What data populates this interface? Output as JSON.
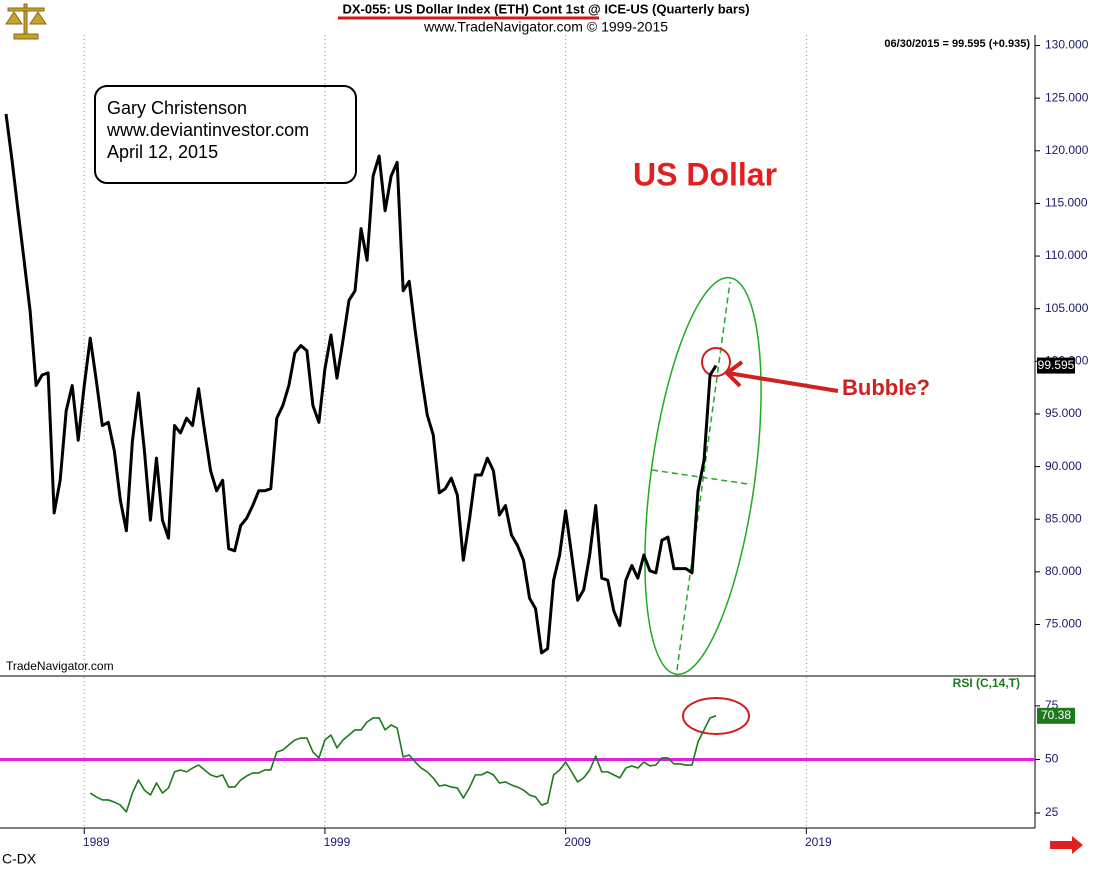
{
  "footer": "C-DX",
  "chart_data": [
    {
      "type": "line",
      "title": "DX-055:  US Dollar Index (ETH) Cont 1st @ ICE-US  (Quarterly bars)",
      "subtitle": "www.TradeNavigator.com © 1999-2015",
      "quote": "06/30/2015 = 99.595 (+0.935)",
      "watermark": "TradeNavigator.com",
      "note_lines": [
        "Gary Christenson",
        "www.deviantinvestor.com",
        "April 12, 2015"
      ],
      "headline": "US Dollar",
      "callout": "Bubble?",
      "color": "#000000",
      "grid": "x",
      "xlim": [
        1985.5,
        2028.5
      ],
      "ylim": [
        70.2,
        131
      ],
      "yticks": [
        {
          "value": 75,
          "label": "75.000"
        },
        {
          "value": 80,
          "label": "80.000"
        },
        {
          "value": 85,
          "label": "85.000"
        },
        {
          "value": 90,
          "label": "90.000"
        },
        {
          "value": 95,
          "label": "95.000"
        },
        {
          "value": 100,
          "label": "100.000"
        },
        {
          "value": 105,
          "label": "105.000"
        },
        {
          "value": 110,
          "label": "110.000"
        },
        {
          "value": 115,
          "label": "115.000"
        },
        {
          "value": 120,
          "label": "120.000"
        },
        {
          "value": 125,
          "label": "125.000"
        },
        {
          "value": 130,
          "label": "130.000"
        }
      ],
      "x": [
        1985.75,
        1986,
        1986.25,
        1986.5,
        1986.75,
        1987,
        1987.25,
        1987.5,
        1987.75,
        1988,
        1988.25,
        1988.5,
        1988.75,
        1989,
        1989.25,
        1989.5,
        1989.75,
        1990,
        1990.25,
        1990.5,
        1990.75,
        1991,
        1991.25,
        1991.5,
        1991.75,
        1992,
        1992.25,
        1992.5,
        1992.75,
        1993,
        1993.25,
        1993.5,
        1993.75,
        1994,
        1994.25,
        1994.5,
        1994.75,
        1995,
        1995.25,
        1995.5,
        1995.75,
        1996,
        1996.25,
        1996.5,
        1996.75,
        1997,
        1997.25,
        1997.5,
        1997.75,
        1998,
        1998.25,
        1998.5,
        1998.75,
        1999,
        1999.25,
        1999.5,
        1999.75,
        2000,
        2000.25,
        2000.5,
        2000.75,
        2001,
        2001.25,
        2001.5,
        2001.75,
        2002,
        2002.25,
        2002.5,
        2002.75,
        2003,
        2003.25,
        2003.5,
        2003.75,
        2004,
        2004.25,
        2004.5,
        2004.75,
        2005,
        2005.25,
        2005.5,
        2005.75,
        2006,
        2006.25,
        2006.5,
        2006.75,
        2007,
        2007.25,
        2007.5,
        2007.75,
        2008,
        2008.25,
        2008.5,
        2008.75,
        2009,
        2009.25,
        2009.5,
        2009.75,
        2010,
        2010.25,
        2010.5,
        2010.75,
        2011,
        2011.25,
        2011.5,
        2011.75,
        2012,
        2012.25,
        2012.5,
        2012.75,
        2013,
        2013.25,
        2013.5,
        2013.75,
        2014,
        2014.25,
        2014.5,
        2014.75,
        2015,
        2015.25
      ],
      "values": [
        123.5,
        119.1,
        114.3,
        109.6,
        104.8,
        97.7,
        98.7,
        98.9,
        85.6,
        88.7,
        95.3,
        97.7,
        92.5,
        97.7,
        102.2,
        98.2,
        93.9,
        94.2,
        91.5,
        86.8,
        83.9,
        92.4,
        97.0,
        91.5,
        84.9,
        90.8,
        84.9,
        83.2,
        93.9,
        93.2,
        94.6,
        93.9,
        97.4,
        93.4,
        89.6,
        87.7,
        88.7,
        82.2,
        82.0,
        84.4,
        85.1,
        86.3,
        87.7,
        87.7,
        87.9,
        94.6,
        95.8,
        97.7,
        100.8,
        101.5,
        101.0,
        95.8,
        94.2,
        99.3,
        102.5,
        98.4,
        102.0,
        105.8,
        106.7,
        112.6,
        109.6,
        117.6,
        119.5,
        114.3,
        117.6,
        118.9,
        106.7,
        107.6,
        102.9,
        98.7,
        94.9,
        93.0,
        87.5,
        87.9,
        88.9,
        87.3,
        81.1,
        84.9,
        89.2,
        89.2,
        90.8,
        89.6,
        85.4,
        86.3,
        83.5,
        82.5,
        81.1,
        77.5,
        76.5,
        72.3,
        72.7,
        79.2,
        81.6,
        85.8,
        81.6,
        77.3,
        78.3,
        81.6,
        86.3,
        79.4,
        79.2,
        76.3,
        74.9,
        79.2,
        80.6,
        79.4,
        81.6,
        80.1,
        79.9,
        83.0,
        83.3,
        80.3,
        80.3,
        80.3,
        79.9,
        87.7,
        90.6,
        98.7,
        99.595
      ]
    },
    {
      "type": "line",
      "label": "RSI (C,14,T)",
      "color": "#1b7a1b",
      "grid": "x",
      "reference_line": 50,
      "reference_color": "#e020e0",
      "xlim": [
        1985.5,
        2028.5
      ],
      "xticks": [
        1989,
        1999,
        2009,
        2019
      ],
      "ylim": [
        18,
        88.5
      ],
      "yticks": [
        25,
        50,
        75
      ],
      "values": [
        null,
        null,
        null,
        null,
        null,
        null,
        null,
        null,
        null,
        null,
        null,
        null,
        null,
        null,
        34.3,
        32.5,
        31.1,
        31.1,
        30.1,
        28.7,
        25.5,
        34.3,
        40.4,
        35.7,
        33.4,
        39.0,
        34.3,
        36.7,
        44.2,
        45.1,
        44.2,
        46.0,
        47.4,
        45.1,
        42.8,
        41.8,
        42.8,
        37.1,
        37.1,
        40.4,
        42.3,
        43.7,
        43.7,
        45.1,
        45.1,
        53.5,
        54.4,
        56.8,
        59.1,
        60.0,
        60.0,
        53.5,
        50.7,
        59.1,
        61.4,
        55.4,
        59.1,
        61.4,
        63.8,
        63.8,
        67.5,
        69.4,
        69.4,
        63.8,
        66.1,
        64.7,
        51.2,
        52.1,
        48.8,
        46.0,
        44.2,
        41.4,
        37.6,
        38.1,
        37.1,
        36.7,
        32.0,
        36.7,
        42.8,
        42.8,
        44.2,
        42.8,
        39.0,
        39.5,
        38.1,
        37.1,
        35.7,
        33.4,
        32.5,
        28.7,
        29.7,
        42.8,
        45.1,
        48.8,
        44.2,
        39.5,
        41.4,
        45.1,
        51.6,
        44.2,
        44.2,
        42.8,
        41.4,
        46.0,
        47.0,
        46.0,
        48.8,
        47.0,
        47.4,
        50.7,
        50.7,
        47.9,
        47.9,
        47.4,
        47.4,
        58.2,
        63.8,
        69.4,
        70.38
      ]
    }
  ]
}
